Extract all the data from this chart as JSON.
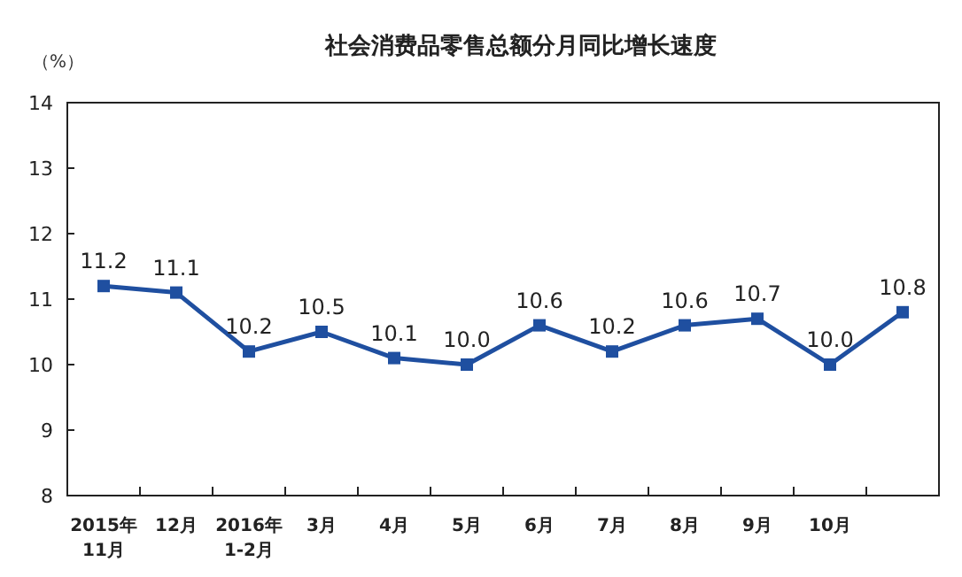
{
  "chart_data": {
    "type": "line",
    "title": "社会消费品零售总额分月同比增长速度",
    "ylabel": "（%）",
    "categories": [
      "2015年\n11月",
      "12月",
      "2016年\n1-2月",
      "3月",
      "4月",
      "5月",
      "6月",
      "7月",
      "8月",
      "9月",
      "10月",
      null
    ],
    "values": [
      11.2,
      11.1,
      10.2,
      10.5,
      10.1,
      10.0,
      10.6,
      10.2,
      10.6,
      10.7,
      10.0,
      10.8
    ],
    "color": "#1f4fa0",
    "ylim": [
      8,
      14
    ],
    "yticks": [
      8,
      9,
      10,
      11,
      12,
      13,
      14
    ],
    "value_labels": [
      "11.2",
      "11.1",
      "10.2",
      "10.5",
      "10.1",
      "10.0",
      "10.6",
      "10.2",
      "10.6",
      "10.7",
      "10.0",
      "10.8"
    ],
    "marker": "square",
    "line_style": "solid",
    "grid": false
  }
}
